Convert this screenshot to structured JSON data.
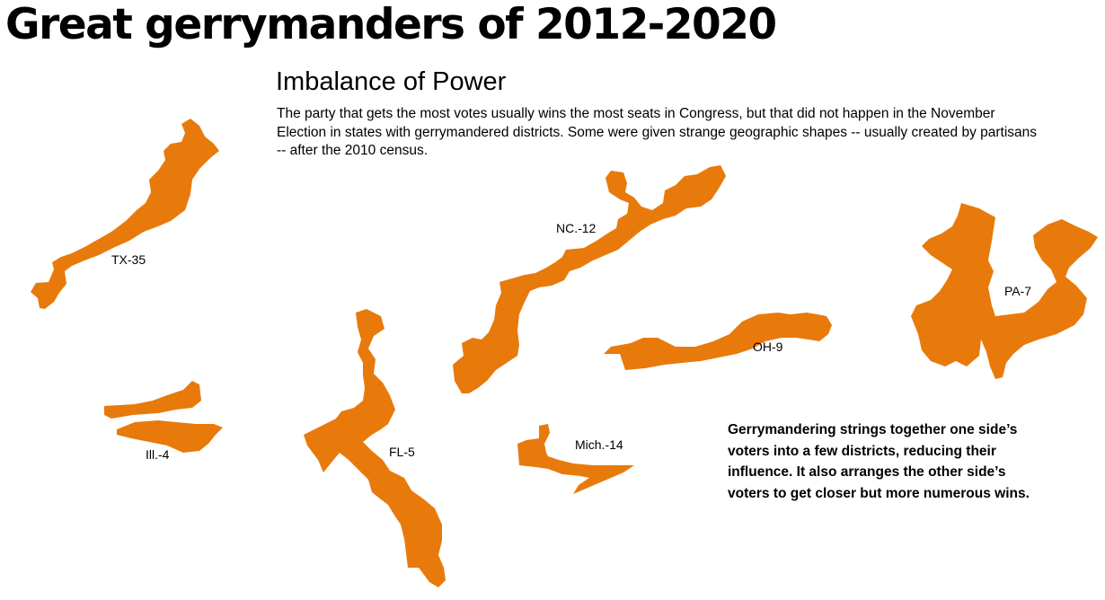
{
  "title": "Great gerrymanders of 2012-2020",
  "subtitle": "Imbalance of Power",
  "intro": "The party that gets the most votes usually wins the most seats in Congress, but that did not happen in the November Election in states with gerrymandered districts. Some were given strange geographic shapes -- usually created by partisans -- after the 2010 census.",
  "explainer": "Gerrymandering strings together one side’s voters into a few districts, reducing their influence. It also arranges the other side’s voters to get closer but more numerous wins.",
  "district_color": "#e87a0c",
  "districts": [
    {
      "label": "TX-35"
    },
    {
      "label": "NC.-12"
    },
    {
      "label": "PA-7"
    },
    {
      "label": "OH-9"
    },
    {
      "label": "Ill.-4"
    },
    {
      "label": "FL-5"
    },
    {
      "label": "Mich.-14"
    }
  ]
}
